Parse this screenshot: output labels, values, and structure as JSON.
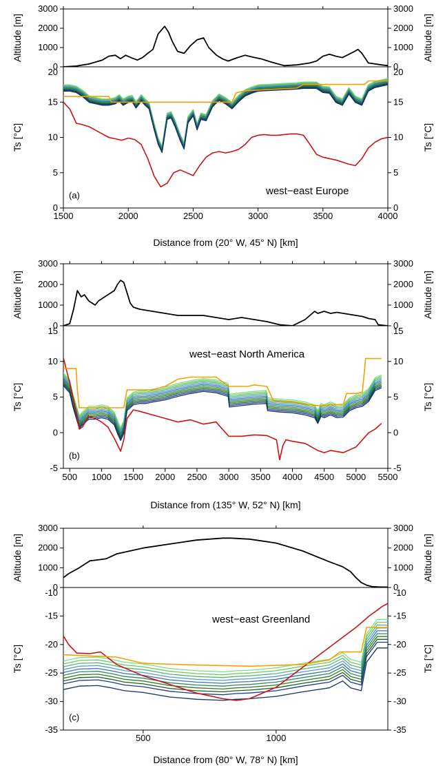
{
  "chart_data": [
    {
      "type": "line",
      "panel_tag": "(a)",
      "annotation": "west−east Europe",
      "xlabel": "Distance from (20° W, 45° N) [km]",
      "xlim": [
        1500,
        4000
      ],
      "xticks": [
        1500,
        2000,
        2500,
        3000,
        3500,
        4000
      ],
      "altitude": {
        "ylabel": "Altitude [m]",
        "ylim": [
          0,
          3000
        ],
        "yticks": [
          0,
          1000,
          2000,
          3000
        ],
        "color": "#000000",
        "x": [
          1500,
          1600,
          1700,
          1800,
          1850,
          1900,
          1940,
          1980,
          2030,
          2070,
          2110,
          2150,
          2190,
          2230,
          2280,
          2310,
          2340,
          2380,
          2430,
          2480,
          2530,
          2580,
          2620,
          2680,
          2730,
          2770,
          2830,
          2900,
          2960,
          3030,
          3100,
          3200,
          3300,
          3400,
          3450,
          3500,
          3550,
          3600,
          3650,
          3700,
          3730,
          3770,
          3800,
          3850,
          3950,
          4000
        ],
        "y": [
          0,
          40,
          150,
          350,
          550,
          600,
          420,
          600,
          450,
          350,
          480,
          700,
          900,
          1700,
          2100,
          1800,
          1300,
          800,
          700,
          1100,
          1400,
          1500,
          1000,
          600,
          400,
          300,
          450,
          600,
          500,
          400,
          250,
          60,
          100,
          200,
          300,
          550,
          650,
          550,
          480,
          650,
          750,
          900,
          700,
          200,
          100,
          60
        ]
      },
      "ts": {
        "ylabel": "Ts [°C]",
        "ylim": [
          0,
          20
        ],
        "yticks": [
          0,
          5,
          10,
          15,
          20
        ],
        "series": [
          {
            "color": "#cc1111",
            "x": [
              1500,
              1550,
              1600,
              1650,
              1700,
              1750,
              1800,
              1850,
              1900,
              1950,
              2000,
              2050,
              2100,
              2150,
              2200,
              2250,
              2300,
              2350,
              2400,
              2450,
              2500,
              2550,
              2600,
              2650,
              2700,
              2750,
              2800,
              2850,
              2900,
              2950,
              3000,
              3050,
              3100,
              3150,
              3200,
              3250,
              3300,
              3350,
              3400,
              3450,
              3500,
              3550,
              3600,
              3650,
              3700,
              3750,
              3800,
              3850,
              3900,
              3950,
              4000
            ],
            "y": [
              15.0,
              14.0,
              12.0,
              11.8,
              11.5,
              11.0,
              10.5,
              10.0,
              9.8,
              9.6,
              9.9,
              9.7,
              9.0,
              7.0,
              4.5,
              3.0,
              3.5,
              5.0,
              5.4,
              5.0,
              4.6,
              6.0,
              7.2,
              7.8,
              8.0,
              7.8,
              8.0,
              8.3,
              9.0,
              10.0,
              10.3,
              10.4,
              10.3,
              10.3,
              10.4,
              10.5,
              10.5,
              10.3,
              9.0,
              7.6,
              7.2,
              7.0,
              6.8,
              6.5,
              6.2,
              6.0,
              7.0,
              8.5,
              9.3,
              9.8,
              10.0
            ]
          },
          {
            "color": "#f5a000",
            "x": [
              1500,
              1800,
              1850,
              1870,
              1950,
              2100,
              2300,
              2500,
              2700,
              2800,
              2830,
              2900,
              3000,
              3100,
              3200,
              3300,
              3350,
              3500,
              3650,
              3750,
              3820,
              3850,
              4000
            ],
            "y": [
              15.8,
              15.8,
              15.8,
              15.0,
              15.0,
              15.0,
              15.0,
              15.0,
              15.0,
              15.0,
              16.3,
              16.6,
              16.7,
              16.8,
              16.9,
              17.0,
              17.5,
              17.5,
              17.5,
              17.5,
              17.5,
              18.0,
              18.0
            ]
          }
        ],
        "ensemble": {
          "count": 10,
          "colors": [
            "#7fdf7f",
            "#66cc66",
            "#5ab46e",
            "#4e9fd0",
            "#3c6fb8",
            "#2e8b57",
            "#2c7a2c",
            "#1e5e1e",
            "#1a3a8a",
            "#0f2f6f"
          ],
          "x": [
            1500,
            1550,
            1600,
            1650,
            1700,
            1750,
            1800,
            1850,
            1900,
            1930,
            1960,
            2000,
            2030,
            2060,
            2100,
            2130,
            2160,
            2200,
            2230,
            2260,
            2300,
            2330,
            2360,
            2400,
            2430,
            2460,
            2500,
            2530,
            2560,
            2600,
            2650,
            2700,
            2750,
            2800,
            2850,
            2900,
            2950,
            3000,
            3100,
            3200,
            3300,
            3350,
            3400,
            3450,
            3500,
            3550,
            3600,
            3650,
            3700,
            3750,
            3800,
            3850,
            3900,
            4000
          ],
          "y": [
            17.0,
            17.0,
            16.8,
            16.2,
            15.4,
            15.2,
            15.0,
            15.0,
            15.2,
            15.6,
            15.0,
            15.4,
            15.5,
            14.6,
            15.6,
            15.0,
            14.5,
            11.5,
            9.5,
            8.3,
            13.0,
            13.2,
            12.0,
            10.0,
            8.8,
            12.5,
            13.5,
            11.5,
            13.0,
            12.8,
            14.8,
            15.7,
            15.2,
            14.5,
            15.5,
            16.3,
            16.7,
            17.0,
            17.1,
            17.2,
            17.3,
            17.4,
            17.4,
            17.4,
            16.8,
            16.7,
            15.4,
            15.0,
            16.6,
            15.4,
            15.0,
            17.0,
            17.5,
            17.9
          ],
          "spread": [
            0.45,
            0.35,
            0.25,
            0.15,
            0.05,
            -0.05,
            -0.15,
            -0.25,
            -0.35,
            -0.45
          ]
        }
      }
    },
    {
      "type": "line",
      "panel_tag": "(b)",
      "annotation": "west−east North America",
      "xlabel": "Distance from (135° W, 52° N) [km]",
      "xlim": [
        400,
        5500
      ],
      "xticks": [
        500,
        1000,
        1500,
        2000,
        2500,
        3000,
        3500,
        4000,
        4500,
        5000,
        5500
      ],
      "altitude": {
        "ylabel": "Altitude [m]",
        "ylim": [
          0,
          3000
        ],
        "yticks": [
          0,
          1000,
          2000,
          3000
        ],
        "color": "#000000",
        "x": [
          400,
          500,
          560,
          620,
          680,
          730,
          800,
          850,
          900,
          950,
          1000,
          1050,
          1100,
          1150,
          1200,
          1250,
          1300,
          1350,
          1400,
          1450,
          1500,
          1600,
          1800,
          2000,
          2200,
          2400,
          2600,
          2800,
          3000,
          3200,
          3400,
          3600,
          3800,
          4000,
          4200,
          4350,
          4400,
          4500,
          4600,
          4700,
          4800,
          4900,
          5000,
          5100,
          5200,
          5300,
          5350,
          5500
        ],
        "y": [
          0,
          100,
          800,
          1700,
          1400,
          1500,
          1200,
          1100,
          1000,
          1200,
          1300,
          1400,
          1500,
          1600,
          1700,
          2000,
          2200,
          2100,
          1600,
          1100,
          900,
          800,
          700,
          600,
          500,
          500,
          500,
          400,
          300,
          400,
          300,
          200,
          50,
          0,
          300,
          700,
          600,
          700,
          600,
          650,
          600,
          550,
          500,
          450,
          350,
          300,
          50,
          0
        ]
      },
      "ts": {
        "ylabel": "Ts [°C]",
        "ylim": [
          -5,
          15
        ],
        "yticks": [
          -5,
          0,
          5,
          10,
          15
        ],
        "series": [
          {
            "color": "#cc1111",
            "x": [
              400,
              500,
              600,
              650,
              700,
              800,
              900,
              1000,
              1100,
              1200,
              1300,
              1350,
              1400,
              1500,
              1600,
              1800,
              2000,
              2200,
              2400,
              2600,
              2800,
              3000,
              3200,
              3400,
              3600,
              3750,
              3800,
              3850,
              3900,
              4000,
              4200,
              4400,
              4500,
              4600,
              4800,
              5000,
              5200,
              5300,
              5400
            ],
            "y": [
              10.5,
              7.0,
              3.0,
              0.5,
              0.8,
              2.3,
              2.0,
              1.5,
              0.8,
              -0.8,
              -2.6,
              -1.0,
              2.0,
              3.2,
              3.0,
              2.5,
              2.0,
              1.5,
              1.8,
              1.2,
              1.5,
              -0.5,
              -0.5,
              -0.3,
              -0.4,
              -1.0,
              -3.8,
              -1.8,
              -1.0,
              -1.2,
              -1.5,
              -2.5,
              -2.8,
              -2.5,
              -2.8,
              -2.0,
              0.0,
              0.5,
              1.3
            ]
          },
          {
            "color": "#f5a000",
            "x": [
              400,
              600,
              620,
              650,
              700,
              1000,
              1350,
              1400,
              1800,
              2000,
              2200,
              2400,
              2600,
              2800,
              3000,
              3300,
              3400,
              3600,
              3700,
              4000,
              4200,
              4400,
              4800,
              4850,
              5000,
              5100,
              5150,
              5400
            ],
            "y": [
              9.0,
              9.0,
              6.0,
              3.5,
              3.5,
              3.5,
              3.5,
              6.0,
              6.0,
              6.5,
              7.5,
              7.8,
              7.8,
              7.8,
              6.5,
              6.5,
              6.7,
              6.5,
              4.5,
              4.3,
              4.0,
              3.8,
              4.0,
              5.5,
              5.5,
              5.7,
              10.4,
              10.4
            ]
          }
        ],
        "ensemble": {
          "count": 10,
          "colors": [
            "#7fdf7f",
            "#66cc66",
            "#5ab46e",
            "#4e9fd0",
            "#3c6fb8",
            "#2e8b57",
            "#2c7a2c",
            "#1e5e1e",
            "#1a3a8a",
            "#0f2f6f"
          ],
          "x": [
            400,
            500,
            550,
            600,
            650,
            700,
            800,
            900,
            1000,
            1100,
            1200,
            1250,
            1300,
            1350,
            1400,
            1500,
            1600,
            1700,
            1800,
            2000,
            2200,
            2400,
            2600,
            2800,
            2990,
            3010,
            3200,
            3400,
            3590,
            3610,
            3800,
            4000,
            4200,
            4350,
            4400,
            4450,
            4500,
            4600,
            4700,
            4800,
            4900,
            5000,
            5100,
            5200,
            5300,
            5400
          ],
          "y": [
            7.5,
            6.5,
            4.5,
            3.0,
            1.5,
            2.0,
            2.8,
            2.8,
            3.0,
            2.8,
            2.0,
            0.8,
            -0.2,
            0.8,
            4.0,
            4.8,
            5.0,
            5.0,
            5.2,
            5.5,
            6.0,
            6.4,
            6.7,
            6.5,
            6.0,
            4.5,
            4.7,
            4.9,
            5.0,
            4.0,
            3.8,
            3.7,
            3.4,
            3.0,
            2.2,
            3.2,
            3.0,
            3.4,
            3.0,
            3.1,
            4.0,
            4.4,
            4.6,
            5.3,
            6.8,
            7.2
          ],
          "spread": [
            0.9,
            0.7,
            0.5,
            0.3,
            0.1,
            -0.1,
            -0.3,
            -0.5,
            -0.7,
            -0.9
          ]
        }
      }
    },
    {
      "type": "line",
      "panel_tag": "(c)",
      "annotation": "west−east Greenland",
      "xlabel": "Distance from (80° W, 78° N) [km]",
      "xlim": [
        200,
        1420
      ],
      "xticks": [
        500,
        1000
      ],
      "altitude": {
        "ylabel": "Altitude [m]",
        "ylim": [
          0,
          3000
        ],
        "yticks": [
          0,
          1000,
          2000,
          3000
        ],
        "color": "#000000",
        "x": [
          200,
          220,
          260,
          300,
          330,
          360,
          400,
          500,
          600,
          700,
          800,
          830,
          900,
          1000,
          1100,
          1200,
          1250,
          1280,
          1300,
          1320,
          1340,
          1360,
          1380,
          1400,
          1420
        ],
        "y": [
          500,
          700,
          1000,
          1350,
          1400,
          1450,
          1700,
          2000,
          2200,
          2400,
          2500,
          2500,
          2450,
          2250,
          1850,
          1300,
          1050,
          800,
          500,
          250,
          120,
          50,
          30,
          20,
          20
        ]
      },
      "ts": {
        "ylabel": "Ts [°C]",
        "ylim": [
          -35,
          -10
        ],
        "yticks": [
          -35,
          -30,
          -25,
          -20,
          -15,
          -10
        ],
        "series": [
          {
            "color": "#cc1111",
            "x": [
              200,
              220,
              250,
              300,
              340,
              400,
              500,
              600,
              700,
              800,
              850,
              900,
              1000,
              1100,
              1200,
              1300,
              1350,
              1400,
              1420
            ],
            "y": [
              -18.5,
              -20.0,
              -21.5,
              -21.6,
              -21.3,
              -23.5,
              -25.5,
              -27.0,
              -28.5,
              -29.5,
              -29.8,
              -29.5,
              -27.5,
              -24.0,
              -20.5,
              -17.0,
              -15.0,
              -13.3,
              -12.8
            ]
          },
          {
            "color": "#f5a000",
            "x": [
              200,
              400,
              500,
              700,
              900,
              1100,
              1200,
              1240,
              1320,
              1340,
              1380,
              1420
            ],
            "y": [
              -21.8,
              -22.2,
              -23.3,
              -23.6,
              -23.8,
              -23.5,
              -22.7,
              -21.3,
              -21.3,
              -17.0,
              -17.0,
              -17.0
            ]
          }
        ],
        "ensemble": {
          "count": 10,
          "colors": [
            "#7fdf7f",
            "#66cc66",
            "#5ab46e",
            "#4e9fd0",
            "#3c6fb8",
            "#2e8b57",
            "#2c7a2c",
            "#1e5e1e",
            "#1a3a8a",
            "#0f2f6f"
          ],
          "x": [
            200,
            260,
            330,
            380,
            430,
            500,
            600,
            700,
            800,
            850,
            900,
            1000,
            1100,
            1200,
            1250,
            1280,
            1320,
            1340,
            1380,
            1420
          ],
          "y": [
            -25.3,
            -24.7,
            -24.6,
            -25.0,
            -25.5,
            -25.8,
            -26.6,
            -27.0,
            -27.2,
            -27.0,
            -26.9,
            -26.5,
            -25.7,
            -25.0,
            -23.8,
            -25.0,
            -25.5,
            -20.5,
            -18.0,
            -18.0
          ],
          "spread": [
            2.4,
            1.9,
            1.4,
            0.9,
            0.4,
            -0.1,
            -0.6,
            -1.1,
            -1.6,
            -2.6
          ]
        }
      }
    }
  ]
}
